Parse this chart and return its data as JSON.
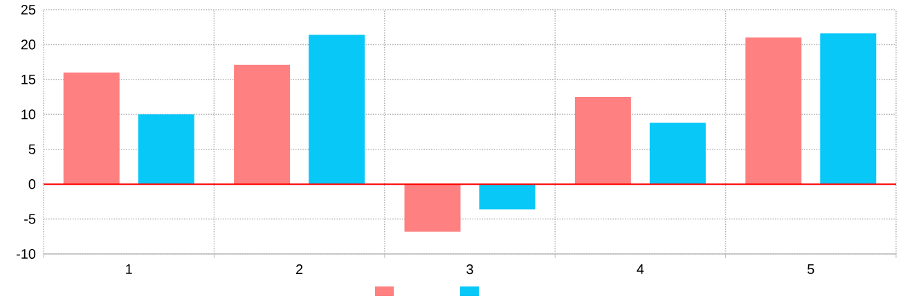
{
  "chart_data": {
    "type": "bar",
    "categories": [
      "1",
      "2",
      "3",
      "4",
      "5"
    ],
    "series": [
      {
        "color": "#ff8080",
        "values": [
          16,
          17.1,
          -6.8,
          12.5,
          21.0
        ]
      },
      {
        "color": "#08c8f8",
        "values": [
          10,
          21.4,
          -3.6,
          8.8,
          21.6
        ]
      }
    ],
    "ylim": [
      -10,
      25
    ],
    "yticks": [
      -10,
      -5,
      0,
      5,
      10,
      15,
      20,
      25
    ],
    "ref_lines": [
      {
        "axis": "y",
        "value": 0,
        "color": "#ff0000"
      }
    ],
    "grid": true
  }
}
